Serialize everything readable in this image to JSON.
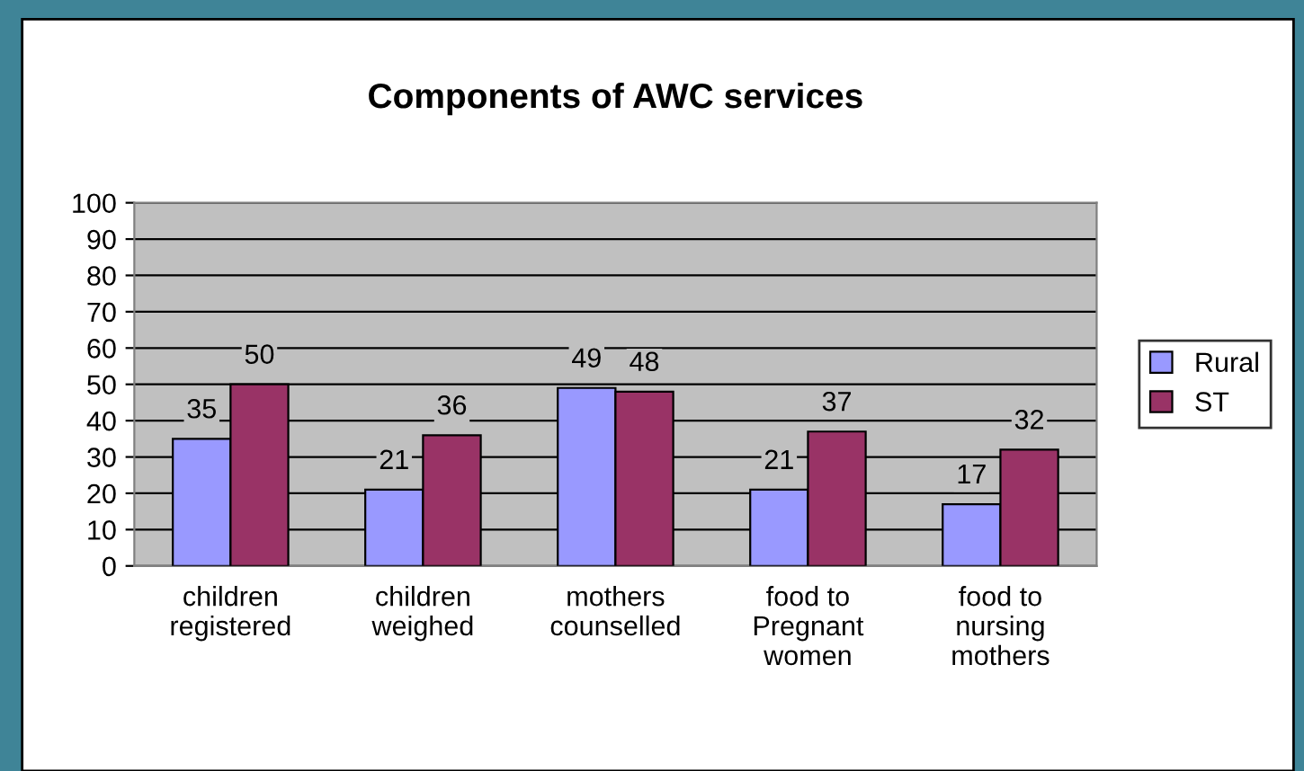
{
  "chart_data": {
    "type": "bar",
    "title": "Components of AWC services",
    "categories": [
      "children\nregistered",
      "children\nweighed",
      "mothers\ncounselled",
      "food to\nPregnant\nwomen",
      "food to\nnursing\nmothers"
    ],
    "series": [
      {
        "name": "Rural",
        "color": "#9999ff",
        "values": [
          35,
          21,
          49,
          21,
          17
        ]
      },
      {
        "name": "ST",
        "color": "#993366",
        "values": [
          50,
          36,
          48,
          37,
          32
        ]
      }
    ],
    "ylim": [
      0,
      100
    ],
    "yticks": [
      0,
      10,
      20,
      30,
      40,
      50,
      60,
      70,
      80,
      90,
      100
    ],
    "grid": "y",
    "legend": "right",
    "data_labels": true
  }
}
